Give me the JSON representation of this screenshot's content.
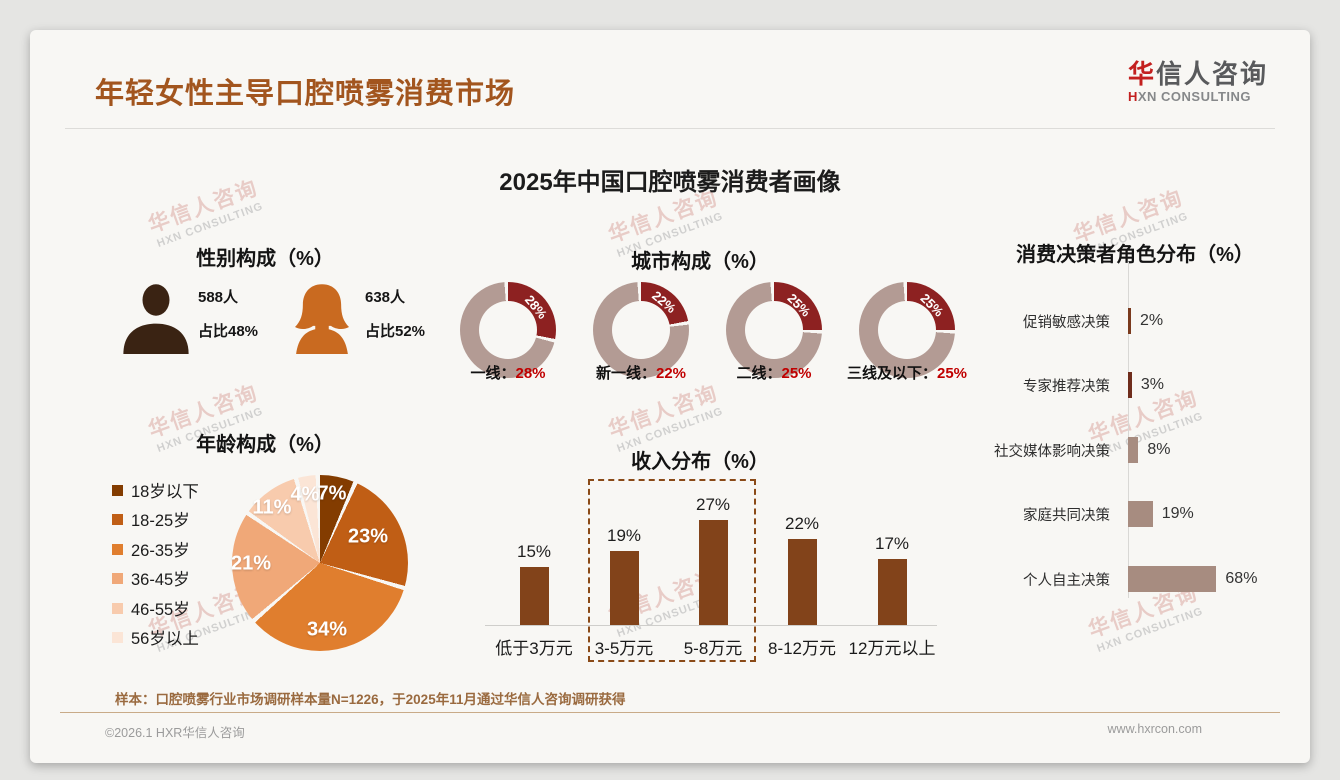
{
  "page": {
    "title": "年轻女性主导口腔喷雾消费市场",
    "main_title": "2025年中国口腔喷雾消费者画像",
    "logo": {
      "brand_first": "华",
      "brand_rest": "信人咨询",
      "sub_first": "H",
      "sub_rest": "XN CONSULTING"
    },
    "watermark": {
      "line1": "华信人咨询",
      "line2": "HXN CONSULTING"
    },
    "sample_note": "样本：口腔喷雾行业市场调研样本量N=1226，于2025年11月通过华信人咨询调研获得",
    "footer_left": "©2026.1 HXR华信人咨询",
    "footer_right": "www.hxrcon.com",
    "accent_colors": {
      "title_brown": "#a2551e",
      "logo_red": "#c3201f",
      "value_red": "#c00000"
    }
  },
  "chart_data": [
    {
      "id": "gender",
      "type": "pictogram",
      "title": "性别构成（%）",
      "items": [
        {
          "icon": "male-silhouette-icon",
          "count": "588人",
          "share": "占比48%",
          "value": 48,
          "color": "#3a2313"
        },
        {
          "icon": "female-silhouette-icon",
          "count": "638人",
          "share": "占比52%",
          "value": 52,
          "color": "#c96a20"
        }
      ]
    },
    {
      "id": "city",
      "type": "donut-multiples",
      "title": "城市构成（%）",
      "items": [
        {
          "label": "一线：",
          "value": 28,
          "pct_label": "28%"
        },
        {
          "label": "新一线：",
          "value": 22,
          "pct_label": "22%"
        },
        {
          "label": "二线：",
          "value": 25,
          "pct_label": "25%"
        },
        {
          "label": "三线及以下：",
          "value": 25,
          "pct_label": "25%"
        }
      ],
      "colors": {
        "highlight": "#8d2121",
        "rest": "#b39b94",
        "value_text": "#c00000"
      }
    },
    {
      "id": "age",
      "type": "pie",
      "title": "年龄构成（%）",
      "categories": [
        "18岁以下",
        "18-25岁",
        "26-35岁",
        "36-45岁",
        "46-55岁",
        "56岁以上"
      ],
      "values": [
        7,
        23,
        34,
        21,
        11,
        4
      ],
      "labels": [
        "7%",
        "23%",
        "34%",
        "21%",
        "11%",
        "4%"
      ],
      "colors": [
        "#833c00",
        "#c05e15",
        "#e07e2e",
        "#f0a878",
        "#f8cbad",
        "#fbe5d6"
      ],
      "legend_position": "left",
      "start_angle": 0
    },
    {
      "id": "income",
      "type": "bar",
      "title": "收入分布（%）",
      "categories": [
        "低于3万元",
        "3-5万元",
        "5-8万元",
        "8-12万元",
        "12万元以上"
      ],
      "values": [
        15,
        19,
        27,
        22,
        17
      ],
      "labels": [
        "15%",
        "19%",
        "27%",
        "22%",
        "17%"
      ],
      "bar_color": "#82431a",
      "highlight_box_categories": [
        "3-5万元",
        "5-8万元"
      ],
      "highlight_box_color": "#8a4a17"
    },
    {
      "id": "decision",
      "type": "horizontal-bar",
      "title": "消费决策者角色分布（%）",
      "categories": [
        "促销敏感决策",
        "专家推荐决策",
        "社交媒体影响决策",
        "家庭共同决策",
        "个人自主决策"
      ],
      "values": [
        2,
        3,
        8,
        19,
        68
      ],
      "labels": [
        "2%",
        "3%",
        "8%",
        "19%",
        "68%"
      ],
      "bar_colors": [
        "#7a3a1d",
        "#6f2d1c",
        "#a78c80",
        "#a78c80",
        "#a78c80"
      ]
    }
  ]
}
